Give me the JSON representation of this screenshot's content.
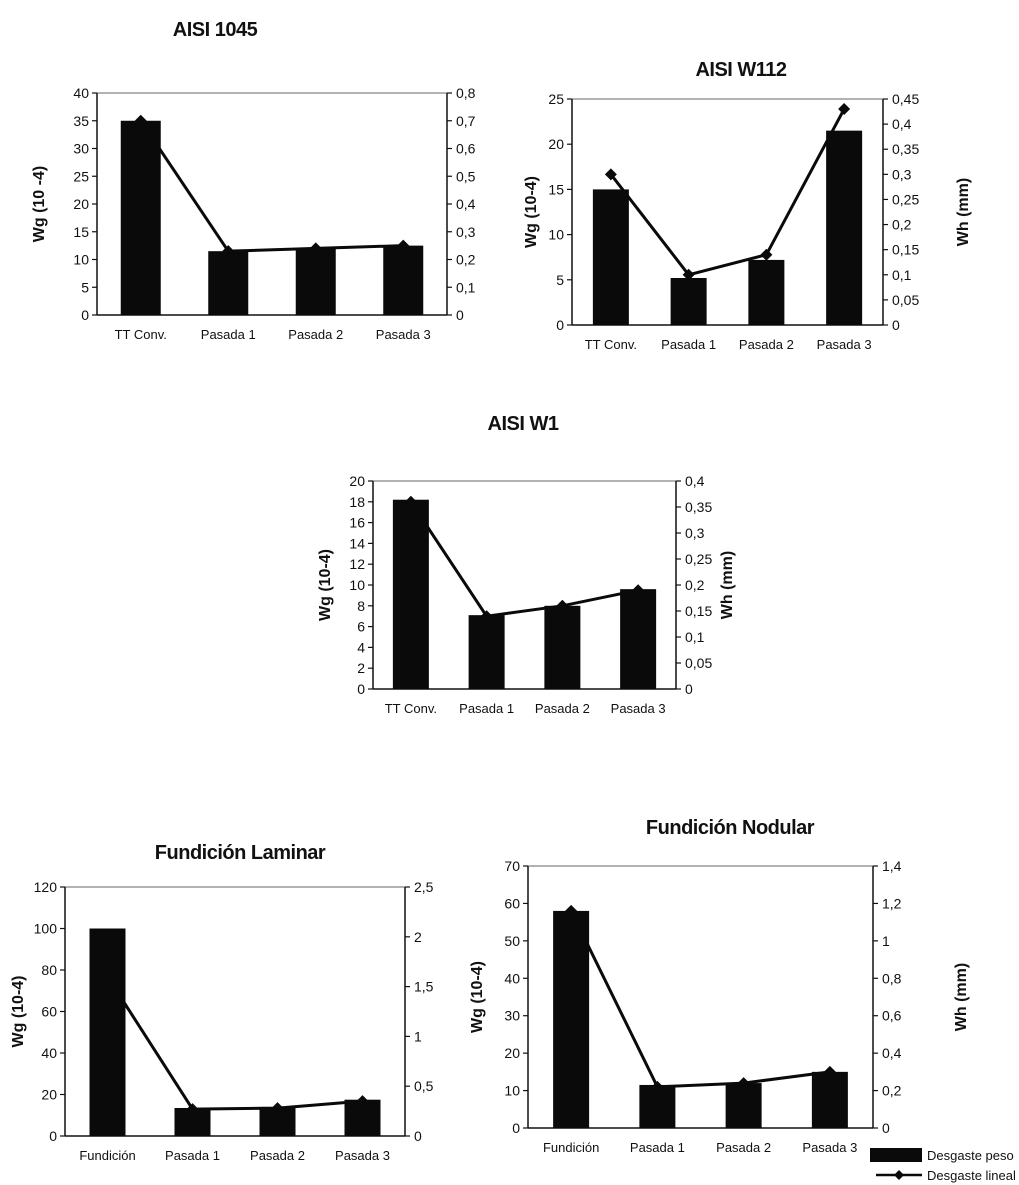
{
  "chart_data": [
    {
      "type": "bar",
      "title": "AISI 1045",
      "categories": [
        "TT Conv.",
        "Pasada 1",
        "Pasada 2",
        "Pasada 3"
      ],
      "ylabel": "Wg (10 -4)",
      "y2label": "",
      "ylim": [
        0,
        40
      ],
      "y2lim": [
        0,
        0.8
      ],
      "yticks": [
        "0",
        "5",
        "10",
        "15",
        "20",
        "25",
        "30",
        "35",
        "40"
      ],
      "y2ticks": [
        "0",
        "0,1",
        "0,2",
        "0,3",
        "0,4",
        "0,5",
        "0,6",
        "0,7",
        "0,8"
      ],
      "series": [
        {
          "values": [
            35,
            11.5,
            12,
            12.5
          ],
          "kind": "bar"
        },
        {
          "values": [
            0.7,
            0.23,
            0.24,
            0.25
          ],
          "kind": "line",
          "axis": "right"
        }
      ]
    },
    {
      "type": "bar",
      "title": "AISI W112",
      "categories": [
        "TT Conv.",
        "Pasada 1",
        "Pasada 2",
        "Pasada 3"
      ],
      "ylabel": "Wg (10-4)",
      "y2label": "Wh (mm)",
      "ylim": [
        0,
        25
      ],
      "y2lim": [
        0,
        0.45
      ],
      "yticks": [
        "0",
        "5",
        "10",
        "15",
        "20",
        "25"
      ],
      "y2ticks": [
        "0",
        "0,05",
        "0,1",
        "0,15",
        "0,2",
        "0,25",
        "0,3",
        "0,35",
        "0,4",
        "0,45"
      ],
      "series": [
        {
          "values": [
            15,
            5.2,
            7.2,
            21.5
          ],
          "kind": "bar"
        },
        {
          "values": [
            0.3,
            0.1,
            0.14,
            0.43
          ],
          "kind": "line",
          "axis": "right"
        }
      ]
    },
    {
      "type": "bar",
      "title": "AISI W1",
      "categories": [
        "TT Conv.",
        "Pasada 1",
        "Pasada 2",
        "Pasada 3"
      ],
      "ylabel": "Wg (10-4)",
      "y2label": "Wh (mm)",
      "ylim": [
        0,
        20
      ],
      "y2lim": [
        0,
        0.4
      ],
      "yticks": [
        "0",
        "2",
        "4",
        "6",
        "8",
        "10",
        "12",
        "14",
        "16",
        "18",
        "20"
      ],
      "y2ticks": [
        "0",
        "0,05",
        "0,1",
        "0,15",
        "0,2",
        "0,25",
        "0,3",
        "0,35",
        "0,4"
      ],
      "series": [
        {
          "values": [
            18.2,
            7.1,
            8,
            9.6
          ],
          "kind": "bar"
        },
        {
          "values": [
            0.36,
            0.14,
            0.16,
            0.19
          ],
          "kind": "line",
          "axis": "right"
        }
      ]
    },
    {
      "type": "bar",
      "title": "Fundición Laminar",
      "categories": [
        "Fundición",
        "Pasada 1",
        "Pasada 2",
        "Pasada 3"
      ],
      "ylabel": "Wg (10-4)",
      "y2label": "",
      "ylim": [
        0,
        120
      ],
      "y2lim": [
        0,
        2.5
      ],
      "yticks": [
        "0",
        "20",
        "40",
        "60",
        "80",
        "100",
        "120"
      ],
      "y2ticks": [
        "0",
        "0,5",
        "1",
        "1,5",
        "2",
        "2,5"
      ],
      "series": [
        {
          "values": [
            100,
            13.5,
            14,
            17.5
          ],
          "kind": "bar"
        },
        {
          "values": [
            1.6,
            0.27,
            0.28,
            0.35
          ],
          "kind": "line",
          "axis": "right"
        }
      ]
    },
    {
      "type": "bar",
      "title": "Fundición Nodular",
      "categories": [
        "Fundición",
        "Pasada 1",
        "Pasada 2",
        "Pasada 3"
      ],
      "ylabel": "Wg (10-4)",
      "y2label": "Wh (mm)",
      "ylim": [
        0,
        70
      ],
      "y2lim": [
        0,
        1.4
      ],
      "yticks": [
        "0",
        "10",
        "20",
        "30",
        "40",
        "50",
        "60",
        "70"
      ],
      "y2ticks": [
        "0",
        "0,2",
        "0,4",
        "0,6",
        "0,8",
        "1",
        "1,2",
        "1,4"
      ],
      "series": [
        {
          "name": "Desgaste peso",
          "values": [
            58,
            11.5,
            12,
            15
          ],
          "kind": "bar"
        },
        {
          "name": "Desgaste lineal",
          "values": [
            1.16,
            0.22,
            0.24,
            0.3
          ],
          "kind": "line",
          "axis": "right"
        }
      ],
      "legend": "bottom-right"
    }
  ]
}
